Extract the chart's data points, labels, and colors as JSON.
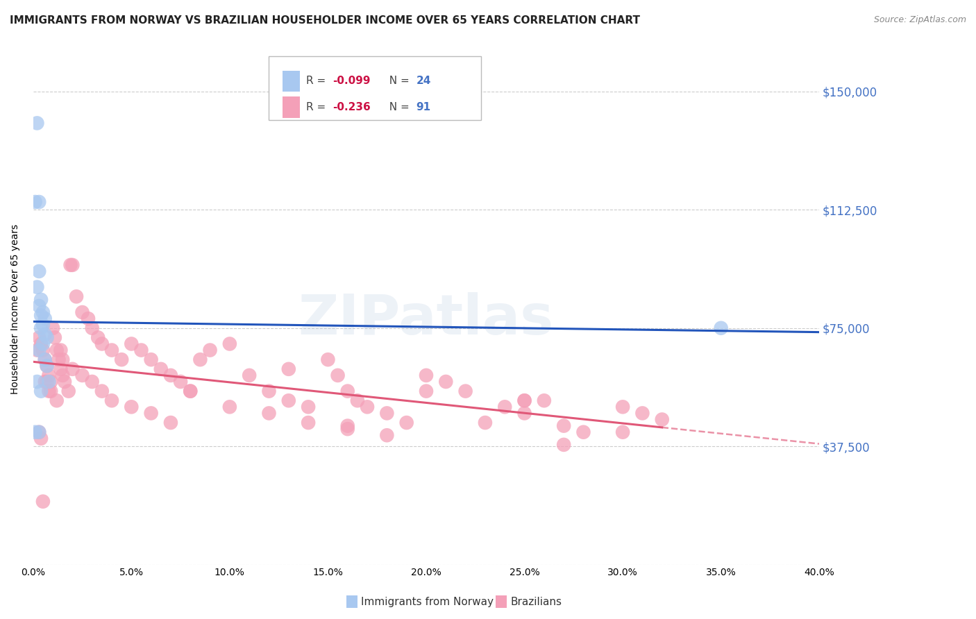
{
  "title": "IMMIGRANTS FROM NORWAY VS BRAZILIAN HOUSEHOLDER INCOME OVER 65 YEARS CORRELATION CHART",
  "source": "Source: ZipAtlas.com",
  "ylabel": "Householder Income Over 65 years",
  "y_ticks": [
    0,
    37500,
    75000,
    112500,
    150000
  ],
  "y_tick_labels": [
    "",
    "$37,500",
    "$75,000",
    "$112,500",
    "$150,000"
  ],
  "xlim": [
    0.0,
    0.4
  ],
  "ylim": [
    0,
    162000
  ],
  "norway_R": -0.099,
  "norway_N": 24,
  "brazil_R": -0.236,
  "brazil_N": 91,
  "norway_color": "#a8c8f0",
  "brazil_color": "#f4a0b8",
  "norway_line_color": "#2255bb",
  "brazil_line_color": "#e05878",
  "norway_x": [
    0.002,
    0.003,
    0.001,
    0.003,
    0.002,
    0.004,
    0.003,
    0.005,
    0.004,
    0.006,
    0.005,
    0.004,
    0.006,
    0.007,
    0.005,
    0.003,
    0.006,
    0.007,
    0.002,
    0.008,
    0.004,
    0.003,
    0.35,
    0.001
  ],
  "norway_y": [
    140000,
    115000,
    115000,
    93000,
    88000,
    84000,
    82000,
    80000,
    79000,
    78000,
    76000,
    75000,
    73000,
    72000,
    70000,
    68000,
    65000,
    63000,
    58000,
    58000,
    55000,
    42000,
    75000,
    42000
  ],
  "brazil_x": [
    0.002,
    0.003,
    0.004,
    0.005,
    0.006,
    0.007,
    0.008,
    0.009,
    0.01,
    0.011,
    0.012,
    0.013,
    0.014,
    0.015,
    0.016,
    0.018,
    0.019,
    0.02,
    0.022,
    0.025,
    0.028,
    0.03,
    0.033,
    0.035,
    0.04,
    0.045,
    0.05,
    0.055,
    0.06,
    0.065,
    0.07,
    0.075,
    0.08,
    0.085,
    0.09,
    0.1,
    0.11,
    0.12,
    0.13,
    0.14,
    0.15,
    0.155,
    0.16,
    0.165,
    0.17,
    0.18,
    0.19,
    0.2,
    0.21,
    0.22,
    0.23,
    0.24,
    0.25,
    0.26,
    0.27,
    0.28,
    0.3,
    0.31,
    0.32,
    0.005,
    0.007,
    0.009,
    0.012,
    0.015,
    0.02,
    0.025,
    0.03,
    0.035,
    0.04,
    0.05,
    0.06,
    0.07,
    0.08,
    0.1,
    0.12,
    0.14,
    0.16,
    0.18,
    0.2,
    0.25,
    0.014,
    0.006,
    0.008,
    0.003,
    0.004,
    0.13,
    0.16,
    0.25,
    0.27,
    0.3
  ],
  "brazil_y": [
    68000,
    72000,
    70000,
    68000,
    65000,
    63000,
    60000,
    58000,
    75000,
    72000,
    68000,
    65000,
    62000,
    60000,
    58000,
    55000,
    95000,
    95000,
    85000,
    80000,
    78000,
    75000,
    72000,
    70000,
    68000,
    65000,
    70000,
    68000,
    65000,
    62000,
    60000,
    58000,
    55000,
    65000,
    68000,
    70000,
    60000,
    55000,
    52000,
    50000,
    65000,
    60000,
    55000,
    52000,
    50000,
    48000,
    45000,
    60000,
    58000,
    55000,
    45000,
    50000,
    48000,
    52000,
    44000,
    42000,
    50000,
    48000,
    46000,
    20000,
    58000,
    55000,
    52000,
    65000,
    62000,
    60000,
    58000,
    55000,
    52000,
    50000,
    48000,
    45000,
    55000,
    50000,
    48000,
    45000,
    43000,
    41000,
    55000,
    52000,
    68000,
    58000,
    55000,
    42000,
    40000,
    62000,
    44000,
    52000,
    38000,
    42000,
    40000
  ],
  "watermark": "ZIPatlas",
  "legend_norway_label": "Immigrants from Norway",
  "legend_brazil_label": "Brazilians",
  "background_color": "#ffffff",
  "grid_color": "#cccccc"
}
